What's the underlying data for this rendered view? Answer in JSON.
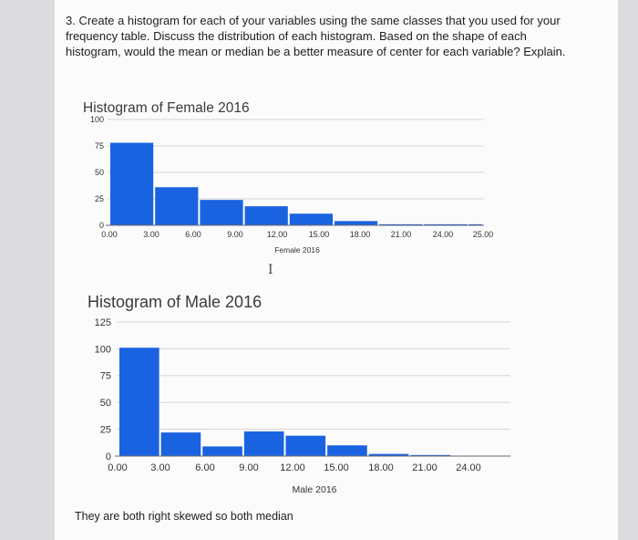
{
  "question": "3. Create a histogram for each of your variables using the same classes that you used for your frequency table. Discuss the distribution of each histogram. Based on the shape of each histogram, would the mean or median be a better measure of center for each variable? Explain.",
  "answer": "They are both right skewed so both median",
  "cursor_glyph": "I",
  "colors": {
    "bar": "#1a63e0",
    "grid": "#d4d4d8",
    "axis": "#6a6a70"
  },
  "chart_data": [
    {
      "type": "bar",
      "title": "Histogram of Female 2016",
      "xlabel": "Female 2016",
      "ylabel": "",
      "ylim": [
        0,
        100
      ],
      "y_ticks": [
        "100",
        "75",
        "50",
        "25",
        "0"
      ],
      "y_tick_values": [
        100,
        75,
        50,
        25,
        0
      ],
      "x_tick_labels": [
        "0.00",
        "3.00",
        "6.00",
        "9.00",
        "12.00",
        "15.00",
        "18.00",
        "21.00",
        "24.00",
        "25.00"
      ],
      "bins": [
        [
          0,
          3
        ],
        [
          3,
          6
        ],
        [
          6,
          9
        ],
        [
          9,
          12
        ],
        [
          12,
          15
        ],
        [
          15,
          18
        ],
        [
          18,
          21
        ],
        [
          21,
          24
        ],
        [
          24,
          25
        ]
      ],
      "values": [
        78,
        36,
        24,
        18,
        11,
        4,
        1,
        1,
        1
      ],
      "grid": true
    },
    {
      "type": "bar",
      "title": "Histogram of Male 2016",
      "xlabel": "Male 2016",
      "ylabel": "",
      "ylim": [
        0,
        125
      ],
      "y_ticks": [
        "125",
        "100",
        "75",
        "50",
        "25",
        "0"
      ],
      "y_tick_values": [
        125,
        100,
        75,
        50,
        25,
        0
      ],
      "x_tick_labels": [
        "0.00",
        "3.00",
        "6.00",
        "9.00",
        "12.00",
        "15.00",
        "18.00",
        "21.00",
        "24.00"
      ],
      "bins": [
        [
          0,
          3
        ],
        [
          3,
          6
        ],
        [
          6,
          9
        ],
        [
          9,
          12
        ],
        [
          12,
          15
        ],
        [
          15,
          18
        ],
        [
          18,
          21
        ],
        [
          21,
          24
        ]
      ],
      "values": [
        101,
        22,
        9,
        23,
        19,
        10,
        2,
        1
      ],
      "grid": true
    }
  ]
}
